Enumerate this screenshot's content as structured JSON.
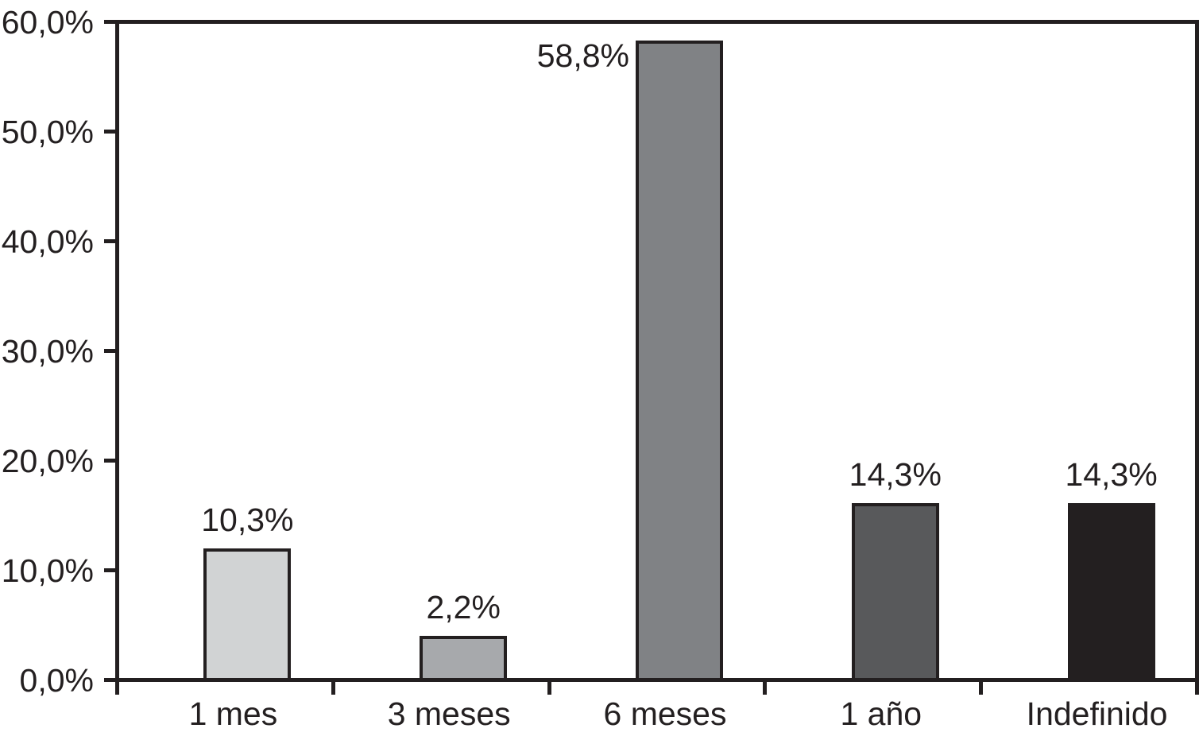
{
  "chart_data": {
    "type": "bar",
    "title": "",
    "xlabel": "",
    "ylabel": "",
    "categories": [
      "1 mes",
      "3 meses",
      "6 meses",
      "1 año",
      "Indefinido"
    ],
    "values": [
      10.3,
      2.2,
      58.8,
      14.3,
      14.3
    ],
    "value_labels": [
      "10,3%",
      "2,2%",
      "58,8%",
      "14,3%",
      "14,3%"
    ],
    "value_label_position": [
      "above",
      "above",
      "left-of-top",
      "above",
      "above"
    ],
    "display_bar_heights_pct": [
      12.0,
      4.0,
      58.3,
      16.1,
      16.1
    ],
    "bar_colors": [
      "#d1d3d4",
      "#a7a9ac",
      "#808285",
      "#58595b",
      "#231f20"
    ],
    "bar_border_color": "#231f20",
    "y_tick_labels": [
      "0,0%",
      "10,0%",
      "20,0%",
      "30,0%",
      "40,0%",
      "50,0%",
      "60,0%"
    ],
    "ylim": [
      0,
      60
    ],
    "y_tick_step": 10,
    "grid": false,
    "legend": "none",
    "frame": "full-box"
  },
  "colors": {
    "background": "#ffffff",
    "axis": "#231f20",
    "text": "#231f20"
  }
}
